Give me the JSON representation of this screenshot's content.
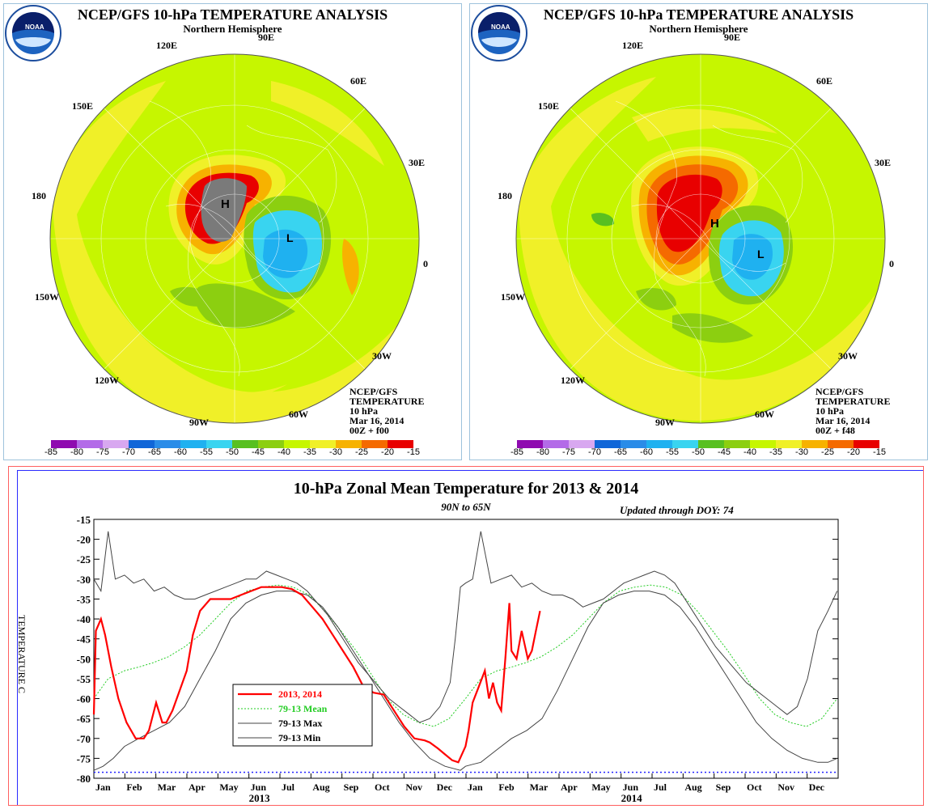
{
  "panels": [
    {
      "title": "NCEP/GFS 10-hPa TEMPERATURE ANALYSIS",
      "subtitle": "Northern Hemisphere",
      "lon_labels": [
        "120E",
        "90E",
        "60E",
        "150E",
        "30E",
        "180",
        "0",
        "150W",
        "30W",
        "120W",
        "90W",
        "60W"
      ],
      "high_label": "H",
      "low_label": "L",
      "meta": [
        "NCEP/GFS",
        "TEMPERATURE",
        "10 hPa",
        "Mar 16, 2014",
        "00Z + f00"
      ]
    },
    {
      "title": "NCEP/GFS 10-hPa TEMPERATURE ANALYSIS",
      "subtitle": "Northern Hemisphere",
      "lon_labels": [
        "120E",
        "90E",
        "60E",
        "150E",
        "30E",
        "180",
        "0",
        "150W",
        "30W",
        "120W",
        "90W",
        "60W"
      ],
      "high_label": "H",
      "low_label": "L",
      "meta": [
        "NCEP/GFS",
        "TEMPERATURE",
        "10 hPa",
        "Mar 16, 2014",
        "00Z + f48"
      ]
    }
  ],
  "colorbar": {
    "ticks": [
      "-85",
      "-80",
      "-75",
      "-70",
      "-65",
      "-60",
      "-55",
      "-50",
      "-45",
      "-40",
      "-35",
      "-30",
      "-25",
      "-20",
      "-15"
    ],
    "colors": [
      "#8f0ab0",
      "#b36be8",
      "#d8a8f0",
      "#1066d8",
      "#2a8ce8",
      "#1fb1f0",
      "#39d4f0",
      "#58c020",
      "#8ccf10",
      "#c6f600",
      "#f0f028",
      "#f7b200",
      "#f56a00",
      "#e80000",
      "#7a7a7a"
    ]
  },
  "chart_data": {
    "type": "line",
    "title": "10-hPa Zonal Mean Temperature for 2013 & 2014",
    "subtitle": "90N to 65N",
    "annotation": "Updated through DOY:  74",
    "ylabel": "TEMPERATURE C",
    "ylim": [
      -80,
      -15
    ],
    "yticks": [
      -15,
      -20,
      -25,
      -30,
      -35,
      -40,
      -45,
      -50,
      -55,
      -60,
      -65,
      -70,
      -75,
      -80
    ],
    "x_months": [
      "Jan",
      "Feb",
      "Mar",
      "Apr",
      "May",
      "Jun",
      "Jul",
      "Aug",
      "Sep",
      "Oct",
      "Nov",
      "Dec",
      "Jan",
      "Feb",
      "Mar",
      "Apr",
      "May",
      "Jun",
      "Jul",
      "Aug",
      "Sep",
      "Oct",
      "Nov",
      "Dec"
    ],
    "x_years": [
      "2013",
      "2014"
    ],
    "reference_line": -78.5,
    "legend": [
      "2013, 2014",
      "79-13 Mean",
      "79-13 Max",
      "79-13 Min"
    ],
    "series": [
      {
        "name": "2013, 2014",
        "color": "#ff0000",
        "x": [
          1,
          3,
          8,
          12,
          18,
          25,
          33,
          42,
          50,
          55,
          62,
          68,
          72,
          78,
          85,
          92,
          98,
          105,
          115,
          125,
          135,
          145,
          155,
          165,
          175,
          185,
          195,
          205,
          215,
          225,
          235,
          245,
          255,
          265,
          275,
          285,
          295,
          305,
          315,
          325,
          330,
          338,
          345,
          352,
          358,
          365,
          368,
          372,
          378,
          384,
          388,
          392,
          396,
          400,
          404,
          408,
          410,
          415,
          420,
          426,
          430,
          434,
          438
        ],
        "y": [
          -64,
          -43,
          -40,
          -44,
          -52,
          -60,
          -66,
          -70,
          -70,
          -68,
          -61,
          -66,
          -66,
          -63,
          -58,
          -53,
          -44,
          -38,
          -35,
          -35,
          -35,
          -34,
          -33,
          -32,
          -32,
          -32,
          -32.5,
          -34,
          -37,
          -40,
          -44,
          -48,
          -52,
          -57,
          -58.5,
          -59,
          -63,
          -67,
          -70,
          -70.5,
          -71,
          -72.5,
          -74,
          -75.5,
          -76,
          -72,
          -68,
          -61,
          -57,
          -53,
          -60,
          -56,
          -61,
          -63,
          -50,
          -36,
          -48,
          -50,
          -43,
          -50,
          -48,
          -43,
          -38
        ]
      },
      {
        "name": "79-13 Mean",
        "color": "#22cc22",
        "x": [
          1,
          15,
          31,
          46,
          59,
          74,
          90,
          105,
          120,
          135,
          151,
          166,
          181,
          196,
          212,
          227,
          243,
          258,
          273,
          288,
          304,
          319,
          334,
          349,
          365,
          380,
          396,
          411,
          424,
          439,
          455,
          470,
          485,
          500,
          516,
          531,
          546,
          561,
          577,
          592,
          607,
          622,
          638,
          653,
          668,
          683,
          699,
          714,
          729
        ],
        "y": [
          -60,
          -55,
          -53,
          -52,
          -51,
          -49.5,
          -47,
          -44,
          -40,
          -36,
          -33,
          -32,
          -31.5,
          -32,
          -34,
          -38,
          -43,
          -48,
          -54,
          -60,
          -64,
          -66,
          -67,
          -65,
          -60,
          -55,
          -53,
          -52,
          -51,
          -49.5,
          -47,
          -44,
          -40,
          -36,
          -33,
          -32,
          -31.5,
          -32,
          -34,
          -38,
          -43,
          -48,
          -54,
          -60,
          -64,
          -66,
          -67,
          -65,
          -60
        ]
      },
      {
        "name": "79-13 Max",
        "color": "#444444",
        "x": [
          1,
          8,
          15,
          22,
          31,
          40,
          50,
          60,
          70,
          80,
          90,
          100,
          110,
          120,
          130,
          140,
          150,
          160,
          170,
          180,
          190,
          200,
          210,
          220,
          230,
          240,
          250,
          260,
          270,
          280,
          290,
          300,
          310,
          320,
          330,
          340,
          350,
          355,
          360,
          365,
          372,
          380,
          390,
          400,
          410,
          420,
          430,
          440,
          450,
          460,
          470,
          480,
          490,
          500,
          510,
          520,
          530,
          540,
          550,
          560,
          570,
          580,
          590,
          600,
          610,
          620,
          630,
          640,
          650,
          660,
          670,
          680,
          690,
          700,
          710,
          720,
          729
        ],
        "y": [
          -30,
          -33,
          -18,
          -30,
          -29,
          -31,
          -30,
          -33,
          -32,
          -34,
          -35,
          -35,
          -34,
          -33,
          -32,
          -31,
          -30,
          -30,
          -28,
          -29,
          -30,
          -31,
          -33,
          -36,
          -39,
          -43,
          -47,
          -51,
          -54,
          -57,
          -60,
          -62,
          -64,
          -66,
          -65,
          -62,
          -56,
          -45,
          -32,
          -31,
          -30,
          -18,
          -31,
          -30,
          -29,
          -32,
          -31,
          -33,
          -34,
          -34,
          -35,
          -37,
          -36,
          -35,
          -33,
          -31,
          -30,
          -29,
          -28,
          -29,
          -31,
          -35,
          -39,
          -43,
          -47,
          -50,
          -53,
          -56,
          -58,
          -60,
          -62,
          -64,
          -62,
          -55,
          -43,
          -38,
          -33
        ]
      },
      {
        "name": "79-13 Min",
        "color": "#444444",
        "x": [
          1,
          10,
          20,
          31,
          45,
          60,
          75,
          90,
          105,
          120,
          135,
          150,
          165,
          180,
          195,
          210,
          225,
          240,
          255,
          270,
          285,
          300,
          315,
          330,
          345,
          360,
          365,
          372,
          380,
          395,
          410,
          425,
          440,
          455,
          470,
          485,
          500,
          515,
          530,
          545,
          560,
          575,
          590,
          605,
          620,
          635,
          650,
          665,
          680,
          695,
          710,
          720,
          729
        ],
        "y": [
          -78,
          -77,
          -75,
          -72,
          -70,
          -68,
          -66,
          -62,
          -55,
          -48,
          -40,
          -36,
          -34,
          -33,
          -33,
          -34,
          -37,
          -42,
          -48,
          -54,
          -60,
          -66,
          -71,
          -75,
          -77,
          -78,
          -77,
          -76.5,
          -76,
          -73,
          -70,
          -68,
          -65,
          -58,
          -50,
          -42,
          -36,
          -34,
          -33,
          -33,
          -34,
          -37,
          -42,
          -48,
          -54,
          -60,
          -66,
          -70,
          -73,
          -75,
          -76,
          -76,
          -75
        ]
      }
    ]
  }
}
